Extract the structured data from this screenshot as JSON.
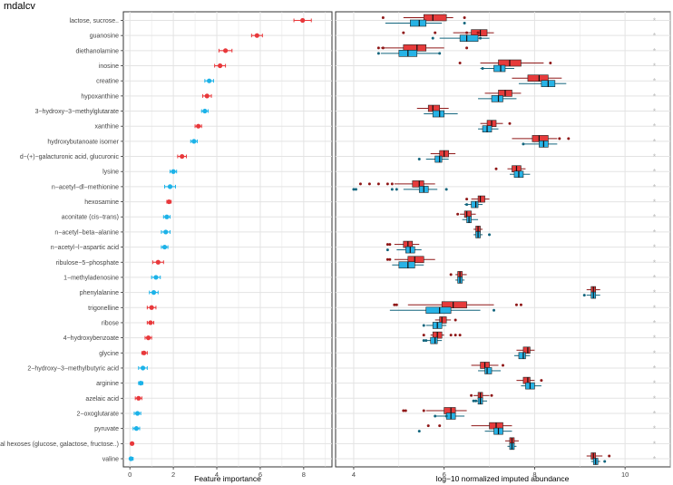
{
  "page_title": "mdalcv",
  "colors": {
    "red": "#e8383b",
    "blue": "#1cb2e8",
    "red_box": "#e63b3b",
    "blue_box": "#27b3e6",
    "red_outlier": "#8f1717",
    "blue_outlier": "#12657d",
    "grid": "#e3e3e3",
    "frame": "#333333",
    "star": "#bdbdbd"
  },
  "chart_data": [
    {
      "type": "dot-errorbar",
      "title": "",
      "xlabel": "Feature importance",
      "ylabel": "",
      "xlim": [
        -0.3,
        9.3
      ],
      "xticks": [
        "0",
        "2",
        "4",
        "6",
        "8"
      ],
      "xtick_values": [
        0,
        2,
        4,
        6,
        8
      ],
      "grid": true,
      "categories": [
        "lactose, sucrose..",
        "guanosine",
        "diethanolamine",
        "inosine",
        "creatine",
        "hypoxanthine",
        "3−hydroxy−3−methylglutarate",
        "xanthine",
        "hydroxybutanoate isomer",
        "d−(+)−galacturonic acid, glucuronic",
        "lysine",
        "n−acetyl−dl−methionine",
        "hexosamine",
        "aconitate (cis−trans)",
        "n−acetyl−beta−alanine",
        "n−acetyl−l−aspartic acid",
        "ribulose−5−phosphate",
        "1−methyladenosine",
        "phenylalanine",
        "trigonelline",
        "ribose",
        "4−hydroxybenzoate",
        "glycine",
        "2−hydroxy−3−methylbutyric acid",
        "arginine",
        "azelaic acid",
        "2−oxoglutarate",
        "pyruvate",
        "total hexoses (glucose, galactose, fructose..)",
        "valine"
      ],
      "values": [
        7.95,
        5.85,
        4.4,
        4.15,
        3.65,
        3.55,
        3.45,
        3.15,
        2.95,
        2.4,
        2.0,
        1.85,
        1.8,
        1.7,
        1.65,
        1.6,
        1.3,
        1.2,
        1.1,
        1.0,
        0.95,
        0.85,
        0.65,
        0.6,
        0.5,
        0.4,
        0.35,
        0.3,
        0.1,
        0.05
      ],
      "err_low": [
        7.55,
        5.6,
        4.1,
        3.9,
        3.45,
        3.35,
        3.3,
        3.0,
        2.8,
        2.2,
        1.85,
        1.6,
        1.7,
        1.55,
        1.45,
        1.45,
        1.05,
        1.0,
        0.9,
        0.8,
        0.8,
        0.7,
        0.55,
        0.4,
        0.4,
        0.25,
        0.2,
        0.15,
        0.05,
        0.0
      ],
      "err_high": [
        8.35,
        6.1,
        4.7,
        4.4,
        3.85,
        3.75,
        3.6,
        3.3,
        3.1,
        2.6,
        2.15,
        2.1,
        1.9,
        1.85,
        1.85,
        1.75,
        1.55,
        1.4,
        1.3,
        1.2,
        1.1,
        1.0,
        0.8,
        0.8,
        0.6,
        0.55,
        0.5,
        0.45,
        0.15,
        0.15
      ],
      "colors": [
        "red",
        "red",
        "red",
        "red",
        "blue",
        "red",
        "blue",
        "red",
        "blue",
        "red",
        "blue",
        "blue",
        "red",
        "blue",
        "blue",
        "blue",
        "red",
        "blue",
        "blue",
        "red",
        "red",
        "red",
        "red",
        "blue",
        "blue",
        "red",
        "blue",
        "blue",
        "red",
        "blue"
      ]
    },
    {
      "type": "boxplot",
      "title": "",
      "xlabel": "log−10 normalized imputed abundance",
      "ylabel": "",
      "xlim": [
        3.6,
        11.0
      ],
      "xticks": [
        "4",
        "6",
        "8",
        "10"
      ],
      "xtick_values": [
        4,
        6,
        8,
        10
      ],
      "grid": true,
      "significance_marker": "*",
      "series": [
        {
          "name": "red",
          "boxes": [
            [
              5.1,
              5.55,
              5.75,
              6.05,
              6.2
            ],
            [
              6.2,
              6.6,
              6.8,
              6.95,
              7.1
            ],
            [
              4.6,
              5.1,
              5.4,
              5.6,
              6.0
            ],
            [
              6.8,
              7.2,
              7.45,
              7.7,
              8.2
            ],
            [
              7.5,
              7.85,
              8.1,
              8.3,
              8.6
            ],
            [
              6.9,
              7.2,
              7.35,
              7.5,
              7.7
            ],
            [
              5.4,
              5.65,
              5.75,
              5.9,
              6.1
            ],
            [
              6.8,
              6.95,
              7.05,
              7.15,
              7.3
            ],
            [
              7.5,
              7.95,
              8.1,
              8.3,
              8.5
            ],
            [
              5.7,
              5.9,
              6.0,
              6.1,
              6.25
            ],
            [
              7.4,
              7.5,
              7.6,
              7.7,
              7.8
            ],
            [
              4.9,
              5.3,
              5.45,
              5.55,
              5.8
            ],
            [
              6.6,
              6.75,
              6.8,
              6.9,
              7.0
            ],
            [
              6.35,
              6.45,
              6.5,
              6.6,
              6.7
            ],
            [
              6.65,
              6.7,
              6.75,
              6.8,
              6.85
            ],
            [
              4.9,
              5.1,
              5.2,
              5.3,
              5.45
            ],
            [
              4.9,
              5.2,
              5.35,
              5.55,
              5.8
            ],
            [
              6.25,
              6.3,
              6.35,
              6.4,
              6.5
            ],
            [
              9.15,
              9.25,
              9.3,
              9.35,
              9.45
            ],
            [
              5.2,
              5.95,
              6.2,
              6.5,
              7.1
            ],
            [
              5.8,
              5.9,
              5.95,
              6.05,
              6.15
            ],
            [
              5.7,
              5.75,
              5.85,
              5.95,
              6.0
            ],
            [
              7.6,
              7.75,
              7.85,
              7.9,
              8.0
            ],
            [
              6.6,
              6.8,
              6.9,
              7.0,
              7.2
            ],
            [
              7.6,
              7.75,
              7.85,
              7.9,
              8.0
            ],
            [
              6.65,
              6.75,
              6.8,
              6.85,
              7.0
            ],
            [
              5.6,
              6.0,
              6.15,
              6.25,
              6.5
            ],
            [
              6.6,
              7.0,
              7.15,
              7.3,
              7.5
            ],
            [
              7.35,
              7.45,
              7.5,
              7.55,
              7.65
            ],
            [
              9.15,
              9.25,
              9.3,
              9.35,
              9.5
            ]
          ],
          "outliers": [
            [
              4.65,
              6.45
            ],
            [
              5.1,
              5.8,
              6.5,
              6.75
            ],
            [
              4.55,
              4.65,
              6.5
            ],
            [
              6.35,
              8.35
            ],
            [],
            [],
            [],
            [
              7.45
            ],
            [
              8.55,
              8.75
            ],
            [],
            [
              7.15
            ],
            [
              4.15,
              4.35,
              4.55,
              4.75,
              4.85
            ],
            [
              6.5
            ],
            [
              6.3
            ],
            [],
            [
              4.75,
              4.8
            ],
            [
              4.75,
              4.8
            ],
            [
              6.15
            ],
            [],
            [
              4.9,
              4.95,
              7.6,
              7.7
            ],
            [
              6.25
            ],
            [
              5.55,
              6.15,
              6.25,
              6.35
            ],
            [],
            [
              7.3
            ],
            [
              8.15
            ],
            [
              6.6,
              7.05
            ],
            [
              5.1,
              5.15,
              5.55
            ],
            [
              5.65,
              5.9
            ],
            [],
            [
              9.65
            ]
          ]
        },
        {
          "name": "blue",
          "boxes": [
            [
              4.7,
              5.25,
              5.45,
              5.6,
              5.95
            ],
            [
              5.9,
              6.35,
              6.5,
              6.75,
              7.0
            ],
            [
              4.6,
              5.0,
              5.2,
              5.4,
              5.9
            ],
            [
              6.8,
              7.1,
              7.25,
              7.35,
              7.55
            ],
            [
              7.65,
              8.15,
              8.3,
              8.45,
              8.7
            ],
            [
              6.75,
              7.05,
              7.2,
              7.3,
              7.6
            ],
            [
              5.55,
              5.75,
              5.9,
              6.0,
              6.3
            ],
            [
              6.75,
              6.85,
              6.95,
              7.05,
              7.2
            ],
            [
              7.75,
              8.1,
              8.2,
              8.3,
              8.5
            ],
            [
              5.6,
              5.8,
              5.9,
              5.95,
              6.1
            ],
            [
              7.45,
              7.55,
              7.65,
              7.75,
              7.9
            ],
            [
              5.1,
              5.45,
              5.55,
              5.65,
              5.85
            ],
            [
              6.45,
              6.6,
              6.7,
              6.75,
              6.85
            ],
            [
              6.4,
              6.5,
              6.55,
              6.6,
              6.75
            ],
            [
              6.65,
              6.7,
              6.75,
              6.8,
              6.85
            ],
            [
              4.95,
              5.15,
              5.25,
              5.35,
              5.5
            ],
            [
              4.85,
              5.0,
              5.2,
              5.35,
              5.55
            ],
            [
              6.25,
              6.3,
              6.35,
              6.4,
              6.45
            ],
            [
              9.15,
              9.25,
              9.3,
              9.35,
              9.45
            ],
            [
              4.8,
              5.6,
              5.9,
              6.15,
              6.8
            ],
            [
              5.6,
              5.75,
              5.85,
              5.95,
              6.05
            ],
            [
              5.6,
              5.7,
              5.8,
              5.85,
              5.95
            ],
            [
              7.55,
              7.65,
              7.75,
              7.8,
              7.9
            ],
            [
              6.75,
              6.9,
              6.95,
              7.05,
              7.25
            ],
            [
              7.7,
              7.8,
              7.9,
              8.0,
              8.15
            ],
            [
              6.65,
              6.75,
              6.8,
              6.85,
              6.95
            ],
            [
              5.8,
              6.05,
              6.15,
              6.25,
              6.45
            ],
            [
              6.9,
              7.1,
              7.2,
              7.3,
              7.5
            ],
            [
              7.4,
              7.45,
              7.5,
              7.55,
              7.6
            ],
            [
              9.25,
              9.3,
              9.35,
              9.4,
              9.45
            ]
          ],
          "outliers": [
            [
              6.45
            ],
            [
              5.75,
              6.8
            ],
            [
              4.55,
              5.9
            ],
            [
              6.85
            ],
            [],
            [],
            [],
            [],
            [
              7.75
            ],
            [
              5.45
            ],
            [],
            [
              4.0,
              4.05,
              4.85,
              4.95,
              6.05
            ],
            [
              6.5
            ],
            [],
            [
              7.0
            ],
            [
              4.75
            ],
            [],
            [],
            [
              9.1
            ],
            [
              7.1
            ],
            [
              5.55
            ],
            [
              5.55,
              5.6
            ],
            [],
            [],
            [],
            [
              6.65,
              6.7
            ],
            [
              5.8,
              6.05
            ],
            [
              5.45
            ],
            [],
            [
              9.55
            ]
          ]
        }
      ]
    }
  ]
}
